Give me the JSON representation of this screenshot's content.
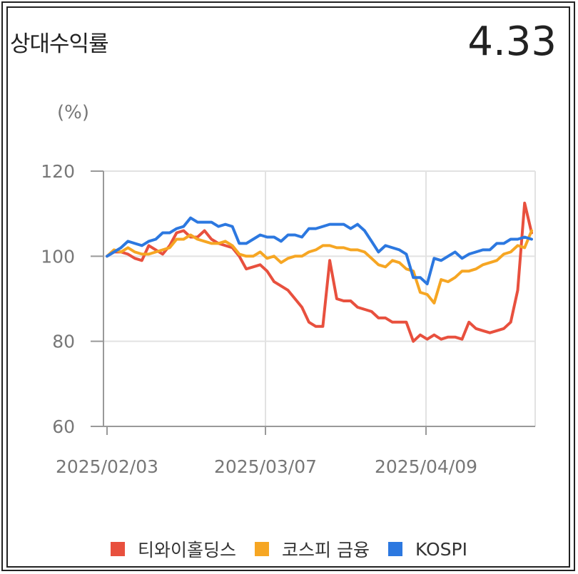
{
  "header": {
    "title": "상대수익률",
    "value": "4.33"
  },
  "chart_data": {
    "type": "line",
    "ylabel": "(%)",
    "ylim": [
      60,
      120
    ],
    "yticks": [
      120,
      100,
      80,
      60
    ],
    "x_ticks": [
      "2025/02/03",
      "2025/03/07",
      "2025/04/09"
    ],
    "grid": true,
    "legend": "bottom",
    "series": [
      {
        "name": "티와이홀딩스",
        "color": "#e8503e",
        "values": [
          100,
          101,
          101,
          100.5,
          99.5,
          99,
          102.5,
          101.5,
          100.5,
          102.5,
          105.5,
          106,
          104.5,
          104.5,
          106,
          104,
          103,
          102.5,
          102,
          100,
          97,
          97.5,
          98,
          96.5,
          94,
          93,
          92,
          90,
          88,
          84.5,
          83.5,
          83.5,
          99,
          90,
          89.5,
          89.5,
          88,
          87.5,
          87,
          85.5,
          85.5,
          84.5,
          84.5,
          84.5,
          80,
          81.5,
          80.5,
          81.5,
          80.5,
          81,
          81,
          80.5,
          84.5,
          83,
          82.5,
          82,
          82.5,
          83,
          84.5,
          92,
          112.5,
          105.5
        ]
      },
      {
        "name": "코스피 금융",
        "color": "#f6a623",
        "values": [
          100,
          101.5,
          101,
          102,
          101,
          100.5,
          100.5,
          101,
          101.5,
          102,
          104,
          104,
          105,
          104,
          103.5,
          103,
          103,
          103.5,
          102.5,
          100.5,
          100,
          100,
          101,
          99.5,
          100,
          98.5,
          99.5,
          100,
          100,
          101,
          101.5,
          102.5,
          102.5,
          102,
          102,
          101.5,
          101.5,
          101,
          99.5,
          98,
          97.5,
          99,
          98.5,
          97,
          96.5,
          91.5,
          91,
          89,
          94.5,
          94,
          95,
          96.5,
          96.5,
          97,
          98,
          98.5,
          99,
          100.5,
          101,
          102.5,
          102,
          106
        ]
      },
      {
        "name": "KOSPI",
        "color": "#2c78e0",
        "values": [
          100,
          101,
          102,
          103.5,
          103,
          102.5,
          103.5,
          104,
          105.5,
          105.5,
          106.5,
          107,
          109,
          108,
          108,
          108,
          107,
          107.5,
          107,
          103,
          103,
          104,
          105,
          104.5,
          104.5,
          103.5,
          105,
          105,
          104.5,
          106.5,
          106.5,
          107,
          107.5,
          107.5,
          107.5,
          106.5,
          107.5,
          106,
          103.5,
          101,
          102.5,
          102,
          101.5,
          100.5,
          95,
          95,
          93.5,
          99.5,
          99,
          100,
          101,
          99.5,
          100.5,
          101,
          101.5,
          101.5,
          103,
          103,
          104,
          104,
          104.5,
          104
        ]
      }
    ]
  }
}
